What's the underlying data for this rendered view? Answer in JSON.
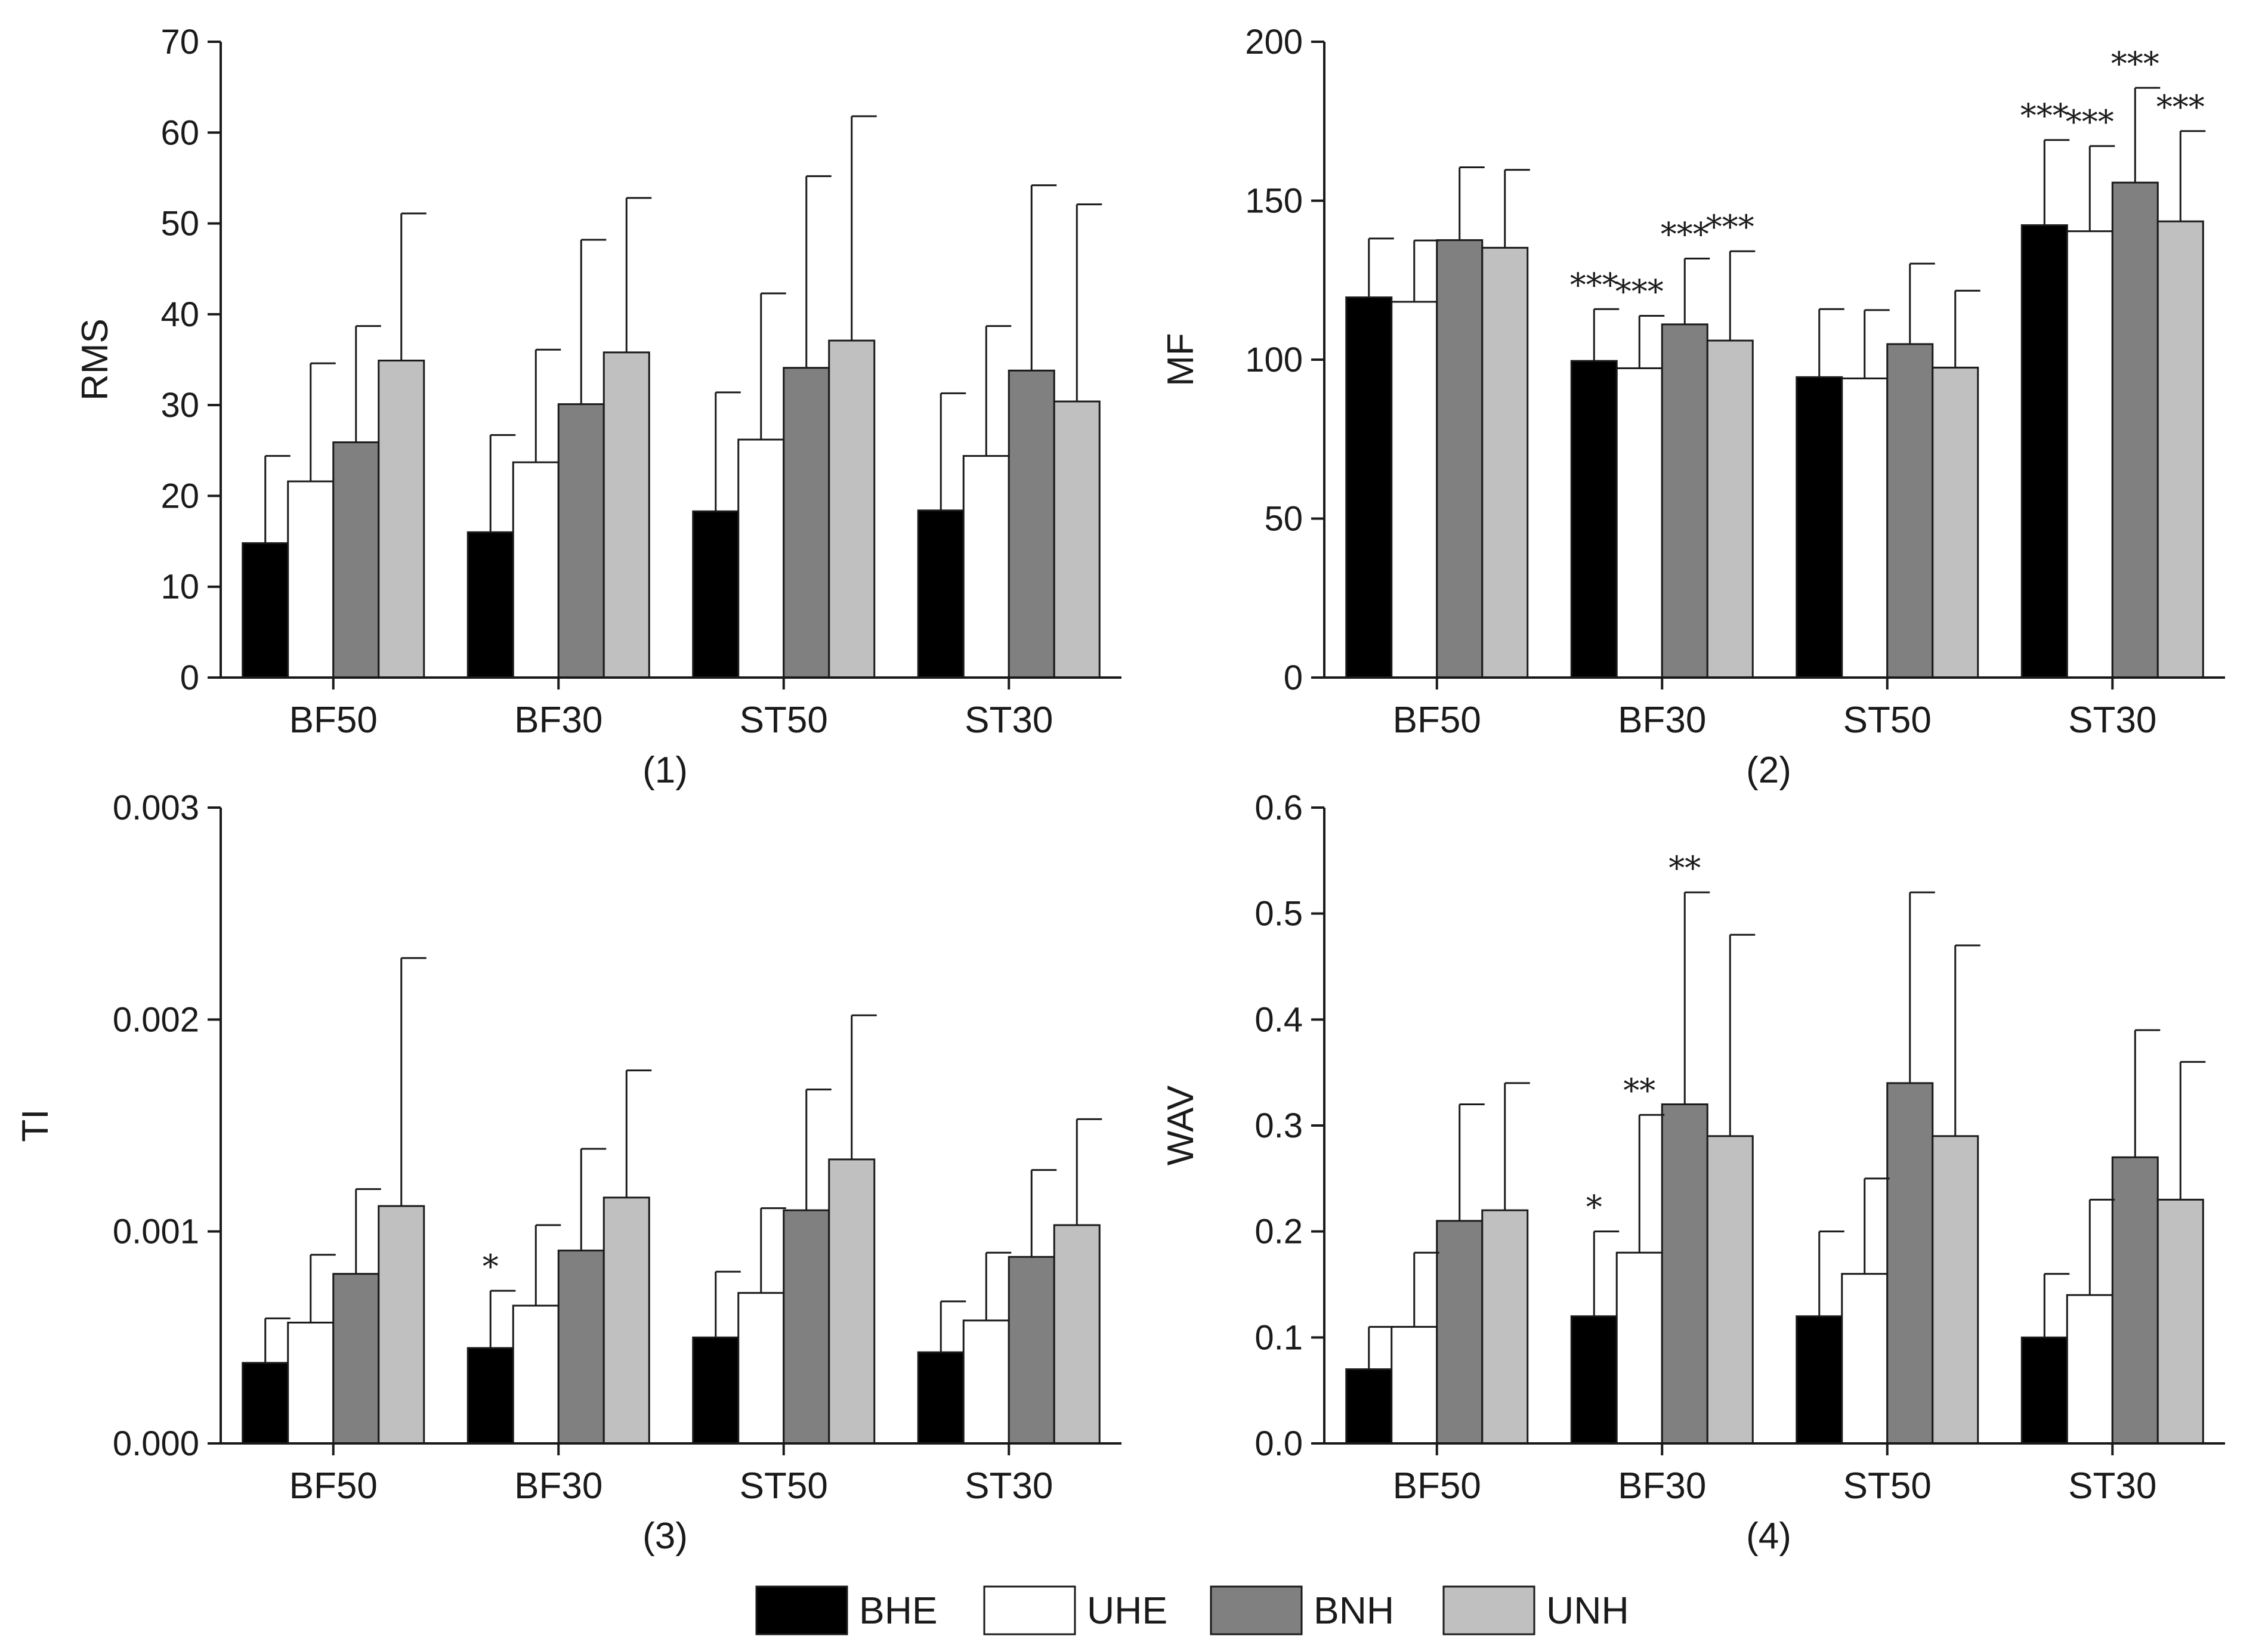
{
  "legend": [
    {
      "name": "BHE",
      "color": "#000000"
    },
    {
      "name": "UHE",
      "color": "#ffffff"
    },
    {
      "name": "BNH",
      "color": "#808080"
    },
    {
      "name": "UNH",
      "color": "#c0c0c0"
    }
  ],
  "chart_data": [
    {
      "type": "bar",
      "caption": "(1)",
      "ylabel": "RMS",
      "categories": [
        "BF50",
        "BF30",
        "ST50",
        "ST30"
      ],
      "ylim": [
        0,
        70
      ],
      "yticks": [
        0,
        10,
        20,
        30,
        40,
        50,
        60,
        70
      ],
      "ytick_labels": [
        "0",
        "10",
        "20",
        "30",
        "40",
        "50",
        "60",
        "70"
      ],
      "series": [
        {
          "name": "BHE",
          "values": [
            14.8,
            16.0,
            18.3,
            18.4
          ],
          "errors": [
            9.6,
            10.7,
            13.1,
            12.9
          ],
          "sig": [
            "",
            "",
            "",
            ""
          ]
        },
        {
          "name": "UHE",
          "values": [
            21.6,
            23.7,
            26.2,
            24.4
          ],
          "errors": [
            13.0,
            12.4,
            16.1,
            14.3
          ],
          "sig": [
            "",
            "",
            "",
            ""
          ]
        },
        {
          "name": "BNH",
          "values": [
            25.9,
            30.1,
            34.1,
            33.8
          ],
          "errors": [
            12.8,
            18.1,
            21.1,
            20.4
          ],
          "sig": [
            "",
            "",
            "",
            ""
          ]
        },
        {
          "name": "UNH",
          "values": [
            34.9,
            35.8,
            37.1,
            30.4
          ],
          "errors": [
            16.2,
            17.0,
            24.7,
            21.7
          ],
          "sig": [
            "",
            "",
            "",
            ""
          ]
        }
      ]
    },
    {
      "type": "bar",
      "caption": "(2)",
      "ylabel": "MF",
      "categories": [
        "BF50",
        "BF30",
        "ST50",
        "ST30"
      ],
      "ylim": [
        0,
        200
      ],
      "yticks": [
        0,
        50,
        100,
        150,
        200
      ],
      "ytick_labels": [
        "0",
        "50",
        "100",
        "150",
        "200"
      ],
      "series": [
        {
          "name": "BHE",
          "values": [
            119.6,
            99.6,
            94.5,
            142.3
          ],
          "errors": [
            18.5,
            16.3,
            21.4,
            26.8
          ],
          "sig": [
            "",
            "***",
            "",
            "***"
          ]
        },
        {
          "name": "UHE",
          "values": [
            118.2,
            97.3,
            94.1,
            140.4
          ],
          "errors": [
            19.3,
            16.5,
            21.5,
            26.8
          ],
          "sig": [
            "",
            "***",
            "",
            "***"
          ]
        },
        {
          "name": "BNH",
          "values": [
            137.6,
            111.1,
            104.9,
            155.7
          ],
          "errors": [
            22.9,
            20.7,
            25.3,
            29.8
          ],
          "sig": [
            "",
            "***",
            "",
            "***"
          ]
        },
        {
          "name": "UNH",
          "values": [
            135.2,
            106.0,
            97.5,
            143.5
          ],
          "errors": [
            24.5,
            28.1,
            24.2,
            28.4
          ],
          "sig": [
            "",
            "***",
            "",
            "***"
          ]
        }
      ]
    },
    {
      "type": "bar",
      "caption": "(3)",
      "ylabel": "TI",
      "categories": [
        "BF50",
        "BF30",
        "ST50",
        "ST30"
      ],
      "ylim": [
        0,
        0.003
      ],
      "yticks": [
        0,
        0.001,
        0.002,
        0.003
      ],
      "ytick_labels": [
        "0.000",
        "0.001",
        "0.002",
        "0.003"
      ],
      "series": [
        {
          "name": "BHE",
          "values": [
            0.00038,
            0.00045,
            0.0005,
            0.00043
          ],
          "errors": [
            0.00021,
            0.00027,
            0.00031,
            0.00024
          ],
          "sig": [
            "",
            "*",
            "",
            ""
          ]
        },
        {
          "name": "UHE",
          "values": [
            0.00057,
            0.00065,
            0.00071,
            0.00058
          ],
          "errors": [
            0.00032,
            0.00038,
            0.0004,
            0.00032
          ],
          "sig": [
            "",
            "",
            "",
            ""
          ]
        },
        {
          "name": "BNH",
          "values": [
            0.0008,
            0.00091,
            0.0011,
            0.00088
          ],
          "errors": [
            0.0004,
            0.00048,
            0.00057,
            0.00041
          ],
          "sig": [
            "",
            "",
            "",
            ""
          ]
        },
        {
          "name": "UNH",
          "values": [
            0.00112,
            0.00116,
            0.00134,
            0.00103
          ],
          "errors": [
            0.00117,
            0.0006,
            0.00068,
            0.0005
          ],
          "sig": [
            "",
            "",
            "",
            ""
          ]
        }
      ]
    },
    {
      "type": "bar",
      "caption": "(4)",
      "ylabel": "WAV",
      "categories": [
        "BF50",
        "BF30",
        "ST50",
        "ST30"
      ],
      "ylim": [
        0,
        0.6
      ],
      "yticks": [
        0,
        0.1,
        0.2,
        0.3,
        0.4,
        0.5,
        0.6
      ],
      "ytick_labels": [
        "0.0",
        "0.1",
        "0.2",
        "0.3",
        "0.4",
        "0.5",
        "0.6"
      ],
      "series": [
        {
          "name": "BHE",
          "values": [
            0.07,
            0.12,
            0.12,
            0.1
          ],
          "errors": [
            0.04,
            0.08,
            0.08,
            0.06
          ],
          "sig": [
            "",
            "*",
            "",
            ""
          ]
        },
        {
          "name": "UHE",
          "values": [
            0.11,
            0.18,
            0.16,
            0.14
          ],
          "errors": [
            0.07,
            0.13,
            0.09,
            0.09
          ],
          "sig": [
            "",
            "**",
            "",
            ""
          ]
        },
        {
          "name": "BNH",
          "values": [
            0.21,
            0.32,
            0.34,
            0.27
          ],
          "errors": [
            0.11,
            0.2,
            0.18,
            0.12
          ],
          "sig": [
            "",
            "**",
            "",
            ""
          ]
        },
        {
          "name": "UNH",
          "values": [
            0.22,
            0.29,
            0.29,
            0.23
          ],
          "errors": [
            0.12,
            0.19,
            0.18,
            0.13
          ],
          "sig": [
            "",
            "",
            "",
            ""
          ]
        }
      ]
    }
  ]
}
